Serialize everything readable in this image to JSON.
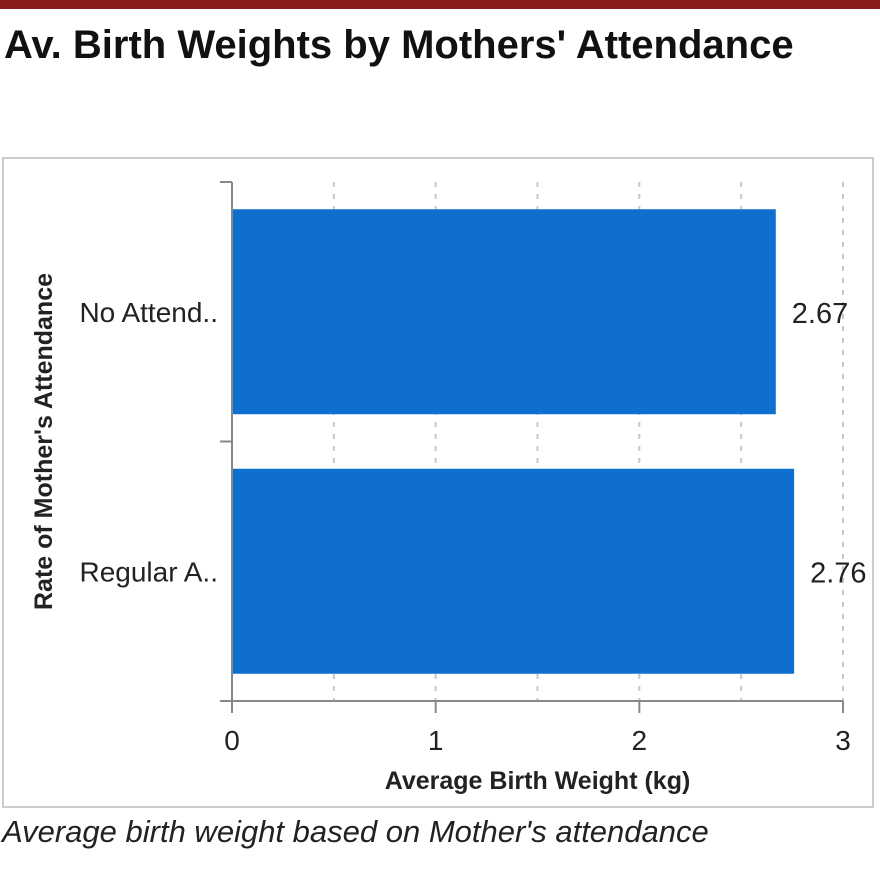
{
  "header": {
    "title": "Av. Birth Weights by Mothers' Attendance",
    "accent_color": "#8b1a1a"
  },
  "caption": "Average birth weight based on Mother's attendance",
  "chart_data": {
    "type": "bar",
    "orientation": "horizontal",
    "categories": [
      "No Attend..",
      "Regular A.."
    ],
    "values": [
      2.67,
      2.76
    ],
    "data_labels": [
      "2.67",
      "2.76"
    ],
    "xlabel": "Average Birth Weight (kg)",
    "ylabel": "Rate of Mother's Attendance",
    "xlim": [
      0,
      3
    ],
    "x_ticks": [
      "0",
      "1",
      "2",
      "3"
    ],
    "grid": "vertical dashed at 0.5 steps",
    "bar_color": "#0e6fce"
  }
}
